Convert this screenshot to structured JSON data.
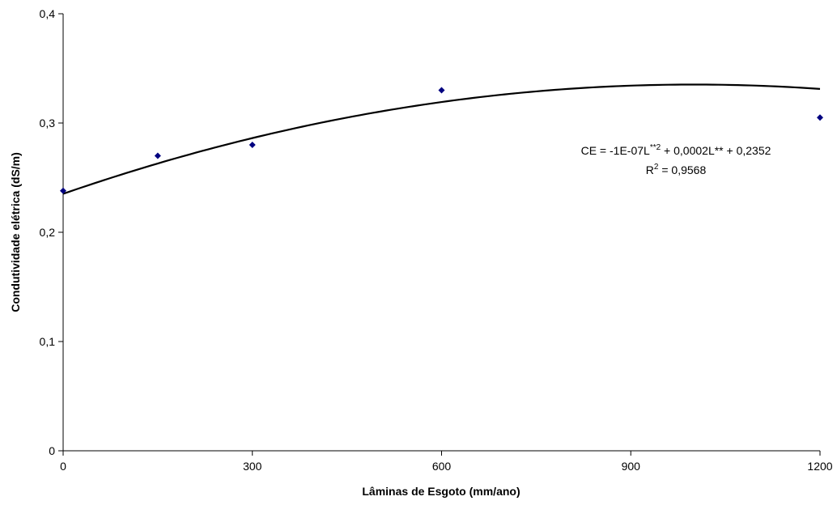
{
  "chart_data": {
    "type": "scatter",
    "xlabel": "Lâminas de Esgoto (mm/ano)",
    "ylabel": "Condutividade elétrica (dS/m)",
    "xlim": [
      0,
      1200
    ],
    "ylim": [
      0,
      0.4
    ],
    "x_ticks": [
      {
        "value": 0,
        "label": "0"
      },
      {
        "value": 300,
        "label": "300"
      },
      {
        "value": 600,
        "label": "600"
      },
      {
        "value": 900,
        "label": "900"
      },
      {
        "value": 1200,
        "label": "1200"
      }
    ],
    "y_ticks": [
      {
        "value": 0,
        "label": "0"
      },
      {
        "value": 0.1,
        "label": "0,1"
      },
      {
        "value": 0.2,
        "label": "0,2"
      },
      {
        "value": 0.3,
        "label": "0,3"
      },
      {
        "value": 0.4,
        "label": "0,4"
      }
    ],
    "grid": false,
    "series": [
      {
        "points": [
          {
            "x": 0,
            "y": 0.238
          },
          {
            "x": 150,
            "y": 0.27
          },
          {
            "x": 300,
            "y": 0.28
          },
          {
            "x": 600,
            "y": 0.33
          },
          {
            "x": 1200,
            "y": 0.305
          }
        ],
        "color": "#000080",
        "marker": "diamond"
      }
    ],
    "trendline": {
      "type": "polynomial",
      "coefficients": [
        -1e-07,
        0.0002,
        0.2352
      ],
      "color": "#000000",
      "equation": {
        "part1": "CE = -1E-07L",
        "sup1": "**2",
        "part2": " + 0,0002L** + 0,2352"
      },
      "r2": {
        "part1": "R",
        "sup1": "2",
        "part2": " = 0,9568"
      }
    }
  }
}
